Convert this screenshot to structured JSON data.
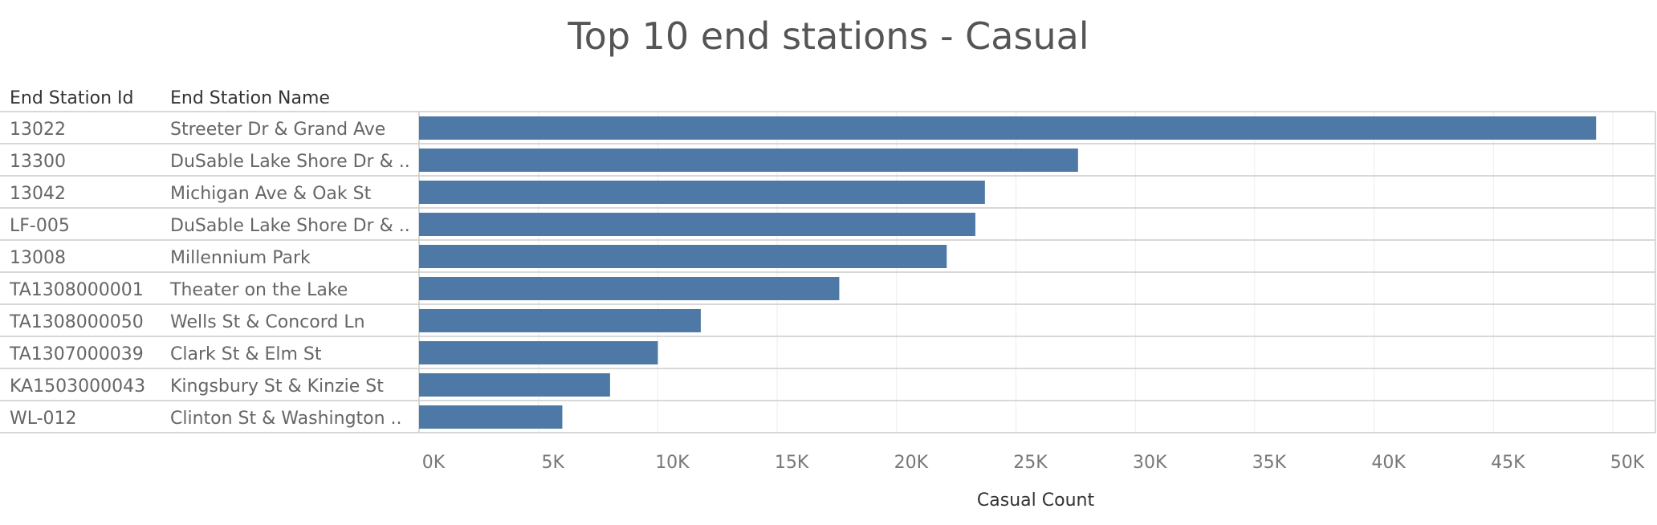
{
  "chart_data": {
    "type": "bar",
    "orientation": "horizontal",
    "title": "Top 10 end stations - Casual",
    "row_headers": [
      "End Station Id",
      "End Station Name"
    ],
    "rows": [
      {
        "id": "13022",
        "name": "Streeter Dr & Grand Ave",
        "value": 49300
      },
      {
        "id": "13300",
        "name": "DuSable Lake Shore Dr & ..",
        "value": 27600
      },
      {
        "id": "13042",
        "name": "Michigan Ave & Oak St",
        "value": 23700
      },
      {
        "id": "LF-005",
        "name": "DuSable Lake Shore Dr & ..",
        "value": 23300
      },
      {
        "id": "13008",
        "name": "Millennium Park",
        "value": 22100
      },
      {
        "id": "TA1308000001",
        "name": "Theater on the Lake",
        "value": 17600
      },
      {
        "id": "TA1308000050",
        "name": "Wells St & Concord Ln",
        "value": 11800
      },
      {
        "id": "TA1307000039",
        "name": "Clark St & Elm St",
        "value": 10000
      },
      {
        "id": "KA1503000043",
        "name": "Kingsbury St & Kinzie St",
        "value": 8000
      },
      {
        "id": "WL-012",
        "name": "Clinton St & Washington ..",
        "value": 6000
      }
    ],
    "xlabel": "Casual Count",
    "xlim": [
      0,
      50000
    ],
    "xticks": [
      {
        "value": 0,
        "label": "0K"
      },
      {
        "value": 5000,
        "label": "5K"
      },
      {
        "value": 10000,
        "label": "10K"
      },
      {
        "value": 15000,
        "label": "15K"
      },
      {
        "value": 20000,
        "label": "20K"
      },
      {
        "value": 25000,
        "label": "25K"
      },
      {
        "value": 30000,
        "label": "30K"
      },
      {
        "value": 35000,
        "label": "35K"
      },
      {
        "value": 40000,
        "label": "40K"
      },
      {
        "value": 45000,
        "label": "45K"
      },
      {
        "value": 50000,
        "label": "50K"
      }
    ],
    "grid": true,
    "bar_color": "#4e79a7"
  }
}
